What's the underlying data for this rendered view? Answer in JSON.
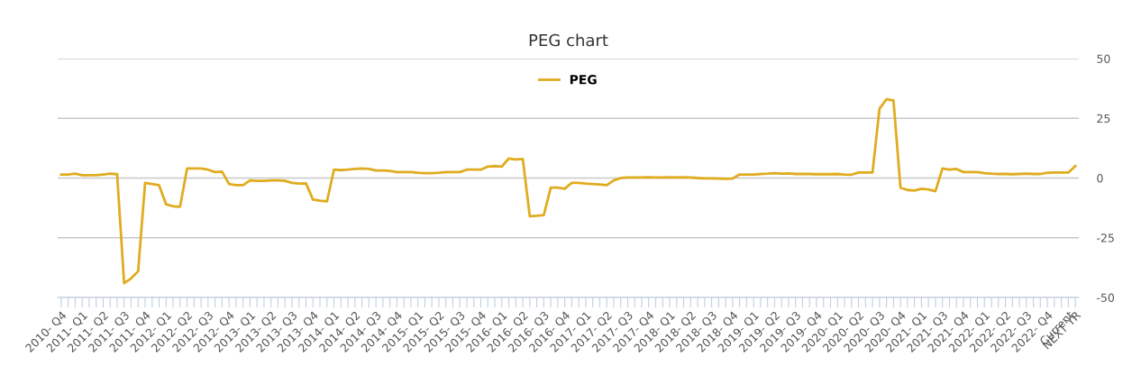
{
  "chart_data": {
    "type": "line",
    "title": "PEG chart",
    "categories": [
      "2010- Q4",
      null,
      null,
      "2011- Q1",
      null,
      null,
      "2011- Q2",
      null,
      null,
      "2011- Q3",
      null,
      null,
      "2011- Q4",
      null,
      null,
      "2012- Q1",
      null,
      null,
      "2012- Q2",
      null,
      null,
      "2012- Q3",
      null,
      null,
      "2012- Q4",
      null,
      null,
      "2013- Q1",
      null,
      null,
      "2013- Q2",
      null,
      null,
      "2013- Q3",
      null,
      null,
      "2013- Q4",
      null,
      null,
      "2014- Q1",
      null,
      null,
      "2014- Q2",
      null,
      null,
      "2014- Q3",
      null,
      null,
      "2014- Q4",
      null,
      null,
      "2015- Q1",
      null,
      null,
      "2015- Q2",
      null,
      null,
      "2015- Q3",
      null,
      null,
      "2015- Q4",
      null,
      null,
      "2016- Q1",
      null,
      null,
      "2016- Q2",
      null,
      null,
      "2016- Q3",
      null,
      null,
      "2016- Q4",
      null,
      null,
      "2017- Q1",
      null,
      null,
      "2017- Q2",
      null,
      null,
      "2017- Q3",
      null,
      null,
      "2017- Q4",
      null,
      null,
      "2018- Q1",
      null,
      null,
      "2018- Q2",
      null,
      null,
      "2018- Q3",
      null,
      null,
      "2018- Q4",
      null,
      null,
      "2019- Q1",
      null,
      null,
      "2019- Q2",
      null,
      null,
      "2019- Q3",
      null,
      null,
      "2019- Q4",
      null,
      null,
      "2020- Q1",
      null,
      null,
      "2020- Q2",
      null,
      null,
      "2020- Q3",
      null,
      null,
      "2020- Q4",
      null,
      null,
      "2021- Q1",
      null,
      null,
      "2021- Q3",
      null,
      null,
      "2021- Q4",
      null,
      null,
      "2022- Q1",
      null,
      null,
      "2022- Q2",
      null,
      null,
      "2022- Q3",
      null,
      null,
      "2022- Q4",
      null,
      null,
      "Current",
      "NEXT YR"
    ],
    "series": [
      {
        "name": "PEG",
        "color": "#e0ac1f",
        "values": [
          1.5,
          1.5,
          1.8,
          1.2,
          1.2,
          1.2,
          1.5,
          1.8,
          1.6,
          -44,
          -42,
          -39,
          -2,
          -2.5,
          -3,
          -11,
          -11.8,
          -12,
          4,
          4,
          4,
          3.5,
          2.5,
          2.7,
          -2.5,
          -3,
          -3,
          -1,
          -1.2,
          -1.2,
          -1,
          -1,
          -1.2,
          -2,
          -2.3,
          -2.2,
          -9,
          -9.5,
          -9.8,
          3.5,
          3.3,
          3.5,
          3.8,
          4,
          3.8,
          3.2,
          3.2,
          3,
          2.5,
          2.5,
          2.5,
          2.2,
          2,
          2,
          2.2,
          2.5,
          2.5,
          2.5,
          3.5,
          3.5,
          3.5,
          4.8,
          5,
          4.8,
          8.2,
          7.8,
          8,
          -16,
          -15.8,
          -15.5,
          -4,
          -4,
          -4.5,
          -2,
          -2,
          -2.3,
          -2.5,
          -2.7,
          -3,
          -1,
          0,
          0.2,
          0.2,
          0.2,
          0.3,
          0.2,
          0.2,
          0.3,
          0.2,
          0.3,
          0.2,
          0,
          -0.1,
          -0.1,
          -0.2,
          -0.3,
          -0.2,
          1.5,
          1.5,
          1.5,
          1.7,
          1.8,
          2,
          1.8,
          1.9,
          1.7,
          1.7,
          1.7,
          1.6,
          1.6,
          1.6,
          1.7,
          1.5,
          1.4,
          2.3,
          2.3,
          2.3,
          29,
          33,
          32.5,
          -4,
          -5,
          -5.2,
          -4.5,
          -4.8,
          -5.5,
          4,
          3.5,
          3.8,
          2.5,
          2.5,
          2.5,
          2,
          1.8,
          1.7,
          1.7,
          1.6,
          1.7,
          1.8,
          1.7,
          1.7,
          2.2,
          2.3,
          2.3,
          2.3,
          5
        ]
      }
    ],
    "ylim": [
      -50,
      50
    ],
    "yticks": [
      -50,
      -25,
      0,
      25,
      50
    ],
    "grid": "y",
    "legend": "top",
    "line_style": "solid"
  }
}
